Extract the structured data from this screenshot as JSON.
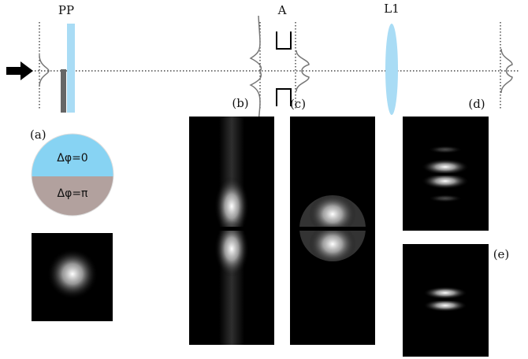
{
  "labels": {
    "pp": "PP",
    "aperture": "A",
    "lens": "L1",
    "a": "(a)",
    "b": "(b)",
    "c": "(c)",
    "d": "(d)",
    "e": "(e)"
  },
  "phase_plate": {
    "top": "Δφ=0",
    "bottom": "Δφ=π"
  }
}
